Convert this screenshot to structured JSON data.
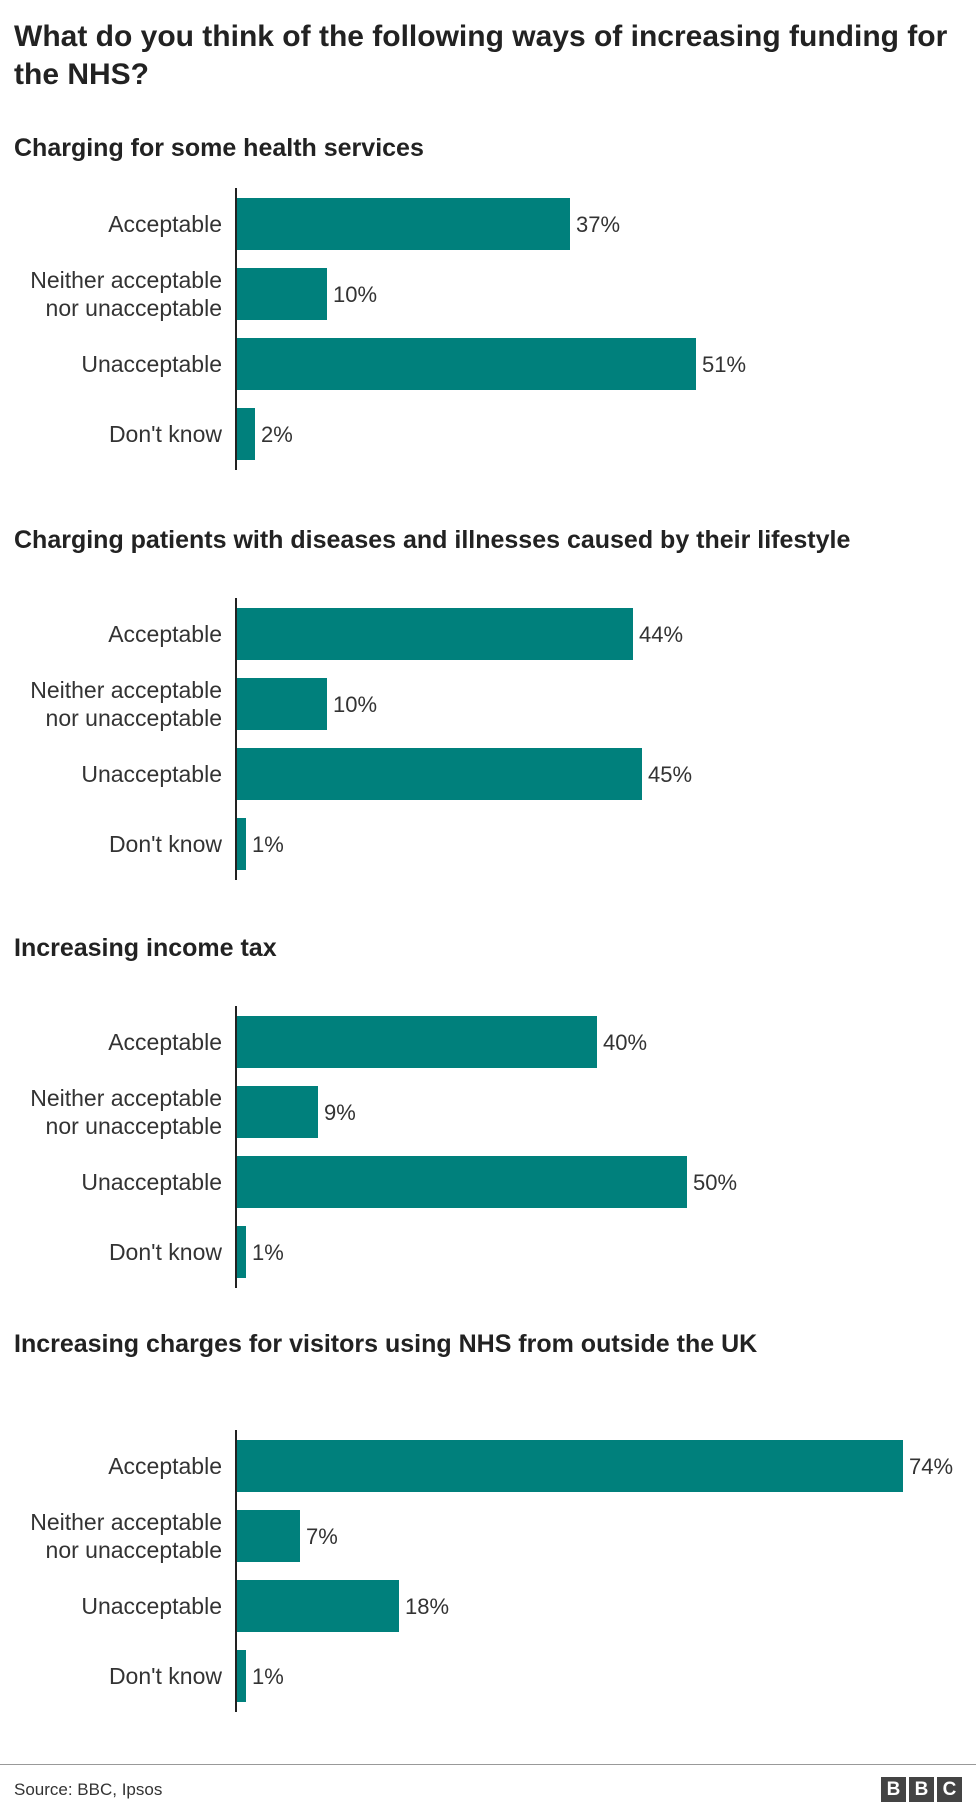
{
  "title": "What do you think of the following ways of increasing funding for the NHS?",
  "colors": {
    "bar": "#00807c",
    "axis": "#222222"
  },
  "chart_data": [
    {
      "type": "bar",
      "orientation": "horizontal",
      "title": "Charging for some health services",
      "categories": [
        [
          "Acceptable"
        ],
        [
          "Neither acceptable",
          "nor unacceptable"
        ],
        [
          "Unacceptable"
        ],
        [
          "Don't know"
        ]
      ],
      "values": [
        37,
        10,
        51,
        2
      ],
      "labels": [
        "37%",
        "10%",
        "51%",
        "2%"
      ],
      "xlim": [
        0,
        74
      ]
    },
    {
      "type": "bar",
      "orientation": "horizontal",
      "title": "Charging patients with diseases and illnesses caused by their lifestyle",
      "categories": [
        [
          "Acceptable"
        ],
        [
          "Neither acceptable",
          "nor unacceptable"
        ],
        [
          "Unacceptable"
        ],
        [
          "Don't know"
        ]
      ],
      "values": [
        44,
        10,
        45,
        1
      ],
      "labels": [
        "44%",
        "10%",
        "45%",
        "1%"
      ],
      "xlim": [
        0,
        74
      ]
    },
    {
      "type": "bar",
      "orientation": "horizontal",
      "title": "Increasing income tax",
      "categories": [
        [
          "Acceptable"
        ],
        [
          "Neither acceptable",
          "nor unacceptable"
        ],
        [
          "Unacceptable"
        ],
        [
          "Don't know"
        ]
      ],
      "values": [
        40,
        9,
        50,
        1
      ],
      "labels": [
        "40%",
        "9%",
        "50%",
        "1%"
      ],
      "xlim": [
        0,
        74
      ]
    },
    {
      "type": "bar",
      "orientation": "horizontal",
      "title": "Increasing charges for visitors using NHS from outside the UK",
      "categories": [
        [
          "Acceptable"
        ],
        [
          "Neither acceptable",
          "nor unacceptable"
        ],
        [
          "Unacceptable"
        ],
        [
          "Don't know"
        ]
      ],
      "values": [
        74,
        7,
        18,
        1
      ],
      "labels": [
        "74%",
        "7%",
        "18%",
        "1%"
      ],
      "xlim": [
        0,
        74
      ]
    }
  ],
  "footer": {
    "source": "Source: BBC, Ipsos",
    "logo": [
      "B",
      "B",
      "C"
    ]
  }
}
